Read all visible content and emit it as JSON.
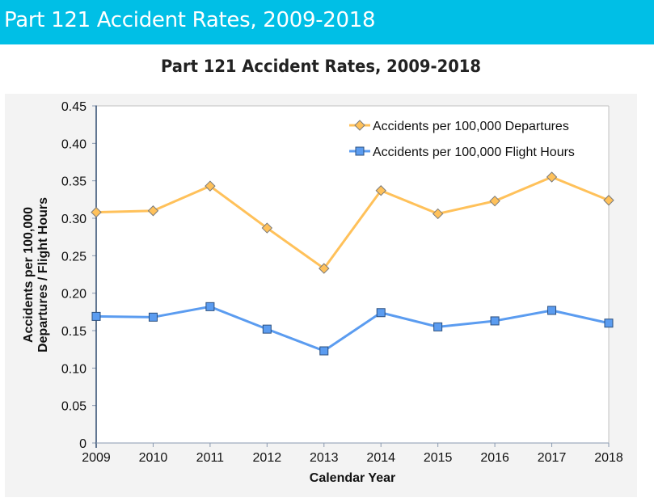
{
  "header": {
    "title": "Part 121 Accident Rates, 2009-2018"
  },
  "colors": {
    "header_bg": "#00bfe6",
    "departures_series": "#ffc15a",
    "flight_hours_series": "#5b9cf0"
  },
  "chart_data": {
    "type": "line",
    "title": "Part 121 Accident Rates, 2009-2018",
    "xlabel": "Calendar Year",
    "ylabel_lines": [
      "Accidents per 100,000",
      "Departures / Flight Hours"
    ],
    "ylabel": "Accidents per 100,000 Departures / Flight Hours",
    "x": [
      "2009",
      "2010",
      "2011",
      "2012",
      "2013",
      "2014",
      "2015",
      "2016",
      "2017",
      "2018"
    ],
    "ylim": [
      0,
      0.45
    ],
    "yticks": [
      0,
      0.05,
      0.1,
      0.15,
      0.2,
      0.25,
      0.3,
      0.35,
      0.4,
      0.45
    ],
    "ytick_labels": [
      "0",
      "0.05",
      "0.10",
      "0.15",
      "0.20",
      "0.25",
      "0.30",
      "0.35",
      "0.40",
      "0.45"
    ],
    "grid": false,
    "legend_position": "top-right",
    "series": [
      {
        "name": "Accidents per 100,000 Departures",
        "marker": "diamond",
        "color": "#ffc15a",
        "values": [
          0.308,
          0.31,
          0.343,
          0.287,
          0.233,
          0.337,
          0.306,
          0.323,
          0.355,
          0.324
        ]
      },
      {
        "name": "Accidents per 100,000 Flight Hours",
        "marker": "square",
        "color": "#5b9cf0",
        "values": [
          0.169,
          0.168,
          0.182,
          0.152,
          0.123,
          0.174,
          0.155,
          0.163,
          0.177,
          0.16
        ]
      }
    ]
  }
}
